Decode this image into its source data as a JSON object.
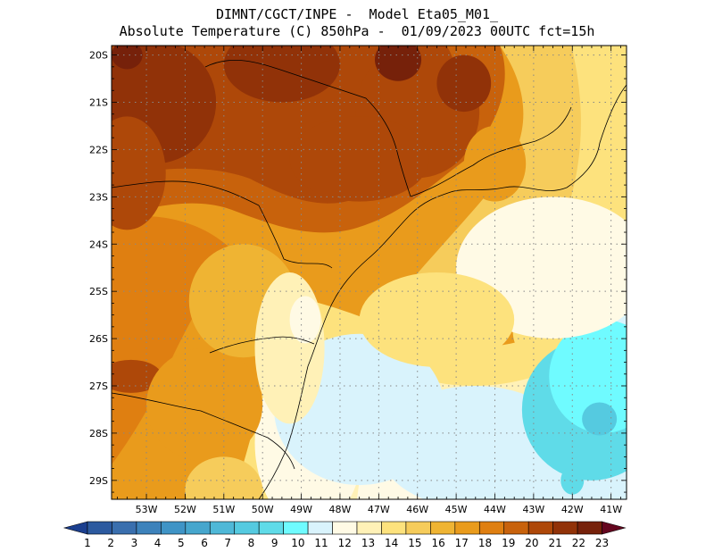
{
  "title": {
    "line1": "DIMNT/CGCT/INPE -  Model Eta05_M01_",
    "line2": "Absolute Temperature (C) 850hPa -  01/09/2023 00UTC fct=15h"
  },
  "map": {
    "lon_range": [
      -53.9,
      -40.6
    ],
    "lat_range": [
      -29.4,
      -19.8
    ],
    "lon_ticks": [
      {
        "value": -53,
        "label": "53W"
      },
      {
        "value": -52,
        "label": "52W"
      },
      {
        "value": -51,
        "label": "51W"
      },
      {
        "value": -50,
        "label": "50W"
      },
      {
        "value": -49,
        "label": "49W"
      },
      {
        "value": -48,
        "label": "48W"
      },
      {
        "value": -47,
        "label": "47W"
      },
      {
        "value": -46,
        "label": "46W"
      },
      {
        "value": -45,
        "label": "45W"
      },
      {
        "value": -44,
        "label": "44W"
      },
      {
        "value": -43,
        "label": "43W"
      },
      {
        "value": -42,
        "label": "42W"
      },
      {
        "value": -41,
        "label": "41W"
      }
    ],
    "lat_ticks": [
      {
        "value": -20,
        "label": "20S"
      },
      {
        "value": -21,
        "label": "21S"
      },
      {
        "value": -22,
        "label": "22S"
      },
      {
        "value": -23,
        "label": "23S"
      },
      {
        "value": -24,
        "label": "24S"
      },
      {
        "value": -25,
        "label": "25S"
      },
      {
        "value": -26,
        "label": "26S"
      },
      {
        "value": -27,
        "label": "27S"
      },
      {
        "value": -28,
        "label": "28S"
      },
      {
        "value": -29,
        "label": "29S"
      }
    ],
    "field_blobs": [
      {
        "lon": -48.8,
        "lat": -28.2,
        "temp": 12,
        "rx": 1.4,
        "ry": 1.8
      },
      {
        "lon": -47.5,
        "lat": -27.5,
        "temp": 11.5,
        "rx": 2.2,
        "ry": 1.6
      },
      {
        "lon": -44.5,
        "lat": -28.3,
        "temp": 11,
        "rx": 2.5,
        "ry": 1.3
      },
      {
        "lon": -41.5,
        "lat": -27.5,
        "temp": 9.5,
        "rx": 1.8,
        "ry": 1.5
      },
      {
        "lon": -41.2,
        "lat": -26.8,
        "temp": 10,
        "rx": 1.4,
        "ry": 1.2
      },
      {
        "lon": -41.3,
        "lat": -27.7,
        "temp": 8.5,
        "rx": 0.45,
        "ry": 0.35
      },
      {
        "lon": -42,
        "lat": -29,
        "temp": 9,
        "rx": 0.3,
        "ry": 0.3
      },
      {
        "lon": -42.5,
        "lat": -24.5,
        "temp": 12.5,
        "rx": 2.5,
        "ry": 1.5
      },
      {
        "lon": -45.5,
        "lat": -25.6,
        "temp": 14,
        "rx": 2,
        "ry": 1
      },
      {
        "lon": -52.8,
        "lat": -21,
        "temp": 21.5,
        "rx": 1.6,
        "ry": 1.3
      },
      {
        "lon": -49.5,
        "lat": -20.2,
        "temp": 21,
        "rx": 1.5,
        "ry": 0.8
      },
      {
        "lon": -46,
        "lat": -21.2,
        "temp": 20.5,
        "rx": 1.6,
        "ry": 1.4
      },
      {
        "lon": -46.5,
        "lat": -20.1,
        "temp": 22,
        "rx": 0.6,
        "ry": 0.45
      },
      {
        "lon": -44.8,
        "lat": -20.6,
        "temp": 21,
        "rx": 0.7,
        "ry": 0.6
      },
      {
        "lon": -47.5,
        "lat": -22.2,
        "temp": 20,
        "rx": 1.8,
        "ry": 0.9
      },
      {
        "lon": -53.5,
        "lat": -22.5,
        "temp": 20,
        "rx": 1,
        "ry": 1.2
      },
      {
        "lon": -53.4,
        "lat": -26.8,
        "temp": 20.5,
        "rx": 0.8,
        "ry": 0.35
      },
      {
        "lon": -53.5,
        "lat": -20,
        "temp": 22.5,
        "rx": 0.4,
        "ry": 0.3
      },
      {
        "lon": -51.5,
        "lat": -27.4,
        "temp": 17,
        "rx": 1.5,
        "ry": 1.2
      },
      {
        "lon": -50.5,
        "lat": -25.2,
        "temp": 16,
        "rx": 1.4,
        "ry": 1.2
      },
      {
        "lon": -49.3,
        "lat": -26.2,
        "temp": 13.5,
        "rx": 0.9,
        "ry": 1.6
      },
      {
        "lon": -48.9,
        "lat": -25.6,
        "temp": 12.5,
        "rx": 0.4,
        "ry": 0.5
      },
      {
        "lon": -51,
        "lat": -29.2,
        "temp": 15,
        "rx": 1,
        "ry": 0.7
      },
      {
        "lon": -44,
        "lat": -22.3,
        "temp": 17,
        "rx": 0.8,
        "ry": 0.8
      }
    ]
  },
  "colorbar": {
    "levels": [
      "1",
      "2",
      "3",
      "4",
      "5",
      "6",
      "7",
      "8",
      "9",
      "10",
      "11",
      "12",
      "13",
      "14",
      "15",
      "16",
      "17",
      "18",
      "19",
      "20",
      "21",
      "22",
      "23"
    ],
    "colors": [
      "#1b3f8f",
      "#2c5a9f",
      "#3a6fae",
      "#3d82bb",
      "#3f94c6",
      "#46a6cd",
      "#4fb8d7",
      "#55cae0",
      "#5fdbe8",
      "#6ffbff",
      "#d9f3fc",
      "#fffae5",
      "#fff1b7",
      "#fde27d",
      "#f6cc5b",
      "#efb433",
      "#e99b1c",
      "#df7f11",
      "#c8620c",
      "#ae4809",
      "#913208",
      "#76210a",
      "#65061f"
    ]
  }
}
